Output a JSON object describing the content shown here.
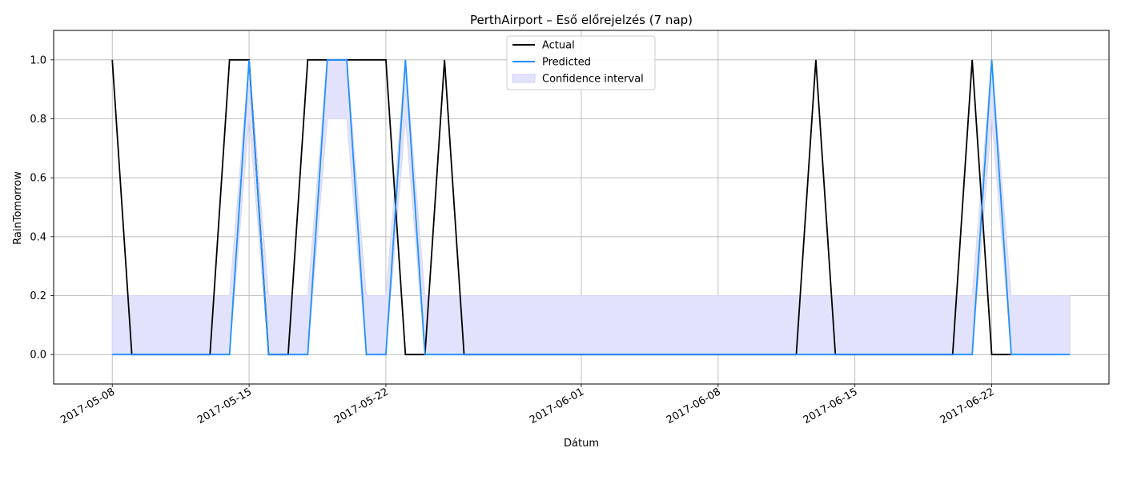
{
  "chart_data": {
    "type": "line",
    "title": "PerthAirport – Eső előrejelzés (7 nap)",
    "xlabel": "Dátum",
    "ylabel": "RainTomorrow",
    "xlim": [
      "2017-05-05",
      "2017-06-28"
    ],
    "ylim": [
      -0.1,
      1.1
    ],
    "x_ticks": [
      "2017-05-08",
      "2017-05-15",
      "2017-05-22",
      "2017-06-01",
      "2017-06-08",
      "2017-06-15",
      "2017-06-22"
    ],
    "y_ticks": [
      "0.0",
      "0.2",
      "0.4",
      "0.6",
      "0.8",
      "1.0"
    ],
    "grid": true,
    "legend_position": "top-center",
    "colors": {
      "actual": "#000000",
      "predicted": "#1e90ff",
      "confidence": "#e2e2fc",
      "grid": "#b0b0b0"
    },
    "series": [
      {
        "name": "Actual",
        "x": [
          "2017-05-08",
          "2017-05-09",
          "2017-05-13",
          "2017-05-14",
          "2017-05-15",
          "2017-05-16",
          "2017-05-17",
          "2017-05-18",
          "2017-05-22",
          "2017-05-23",
          "2017-05-24",
          "2017-05-25",
          "2017-05-26",
          "2017-06-12",
          "2017-06-13",
          "2017-06-14",
          "2017-06-20",
          "2017-06-21",
          "2017-06-22",
          "2017-06-23"
        ],
        "values": [
          1,
          0,
          0,
          1,
          1,
          0,
          0,
          1,
          1,
          0,
          0,
          1,
          0,
          0,
          1,
          0,
          0,
          1,
          0,
          0
        ]
      },
      {
        "name": "Predicted",
        "x": [
          "2017-05-08",
          "2017-05-14",
          "2017-05-15",
          "2017-05-16",
          "2017-05-18",
          "2017-05-19",
          "2017-05-20",
          "2017-05-21",
          "2017-05-22",
          "2017-05-23",
          "2017-05-24",
          "2017-06-21",
          "2017-06-22",
          "2017-06-23",
          "2017-06-26"
        ],
        "values": [
          0,
          0,
          1,
          0,
          0,
          1,
          1,
          0,
          0,
          1,
          0,
          0,
          1,
          0,
          0
        ]
      }
    ],
    "confidence_interval": {
      "name": "Confidence interval",
      "x": [
        "2017-05-08",
        "2017-05-14",
        "2017-05-15",
        "2017-05-16",
        "2017-05-18",
        "2017-05-19",
        "2017-05-20",
        "2017-05-21",
        "2017-05-22",
        "2017-05-23",
        "2017-05-24",
        "2017-06-21",
        "2017-06-22",
        "2017-06-23",
        "2017-06-26"
      ],
      "lower": [
        0,
        0,
        0.8,
        0,
        0,
        0.8,
        0.8,
        0,
        0,
        0.8,
        0,
        0,
        0.8,
        0,
        0
      ],
      "upper": [
        0.2,
        0.2,
        1,
        0.2,
        0.2,
        1,
        1,
        0.2,
        0.2,
        1,
        0.2,
        0.2,
        1,
        0.2,
        0.2
      ]
    }
  }
}
